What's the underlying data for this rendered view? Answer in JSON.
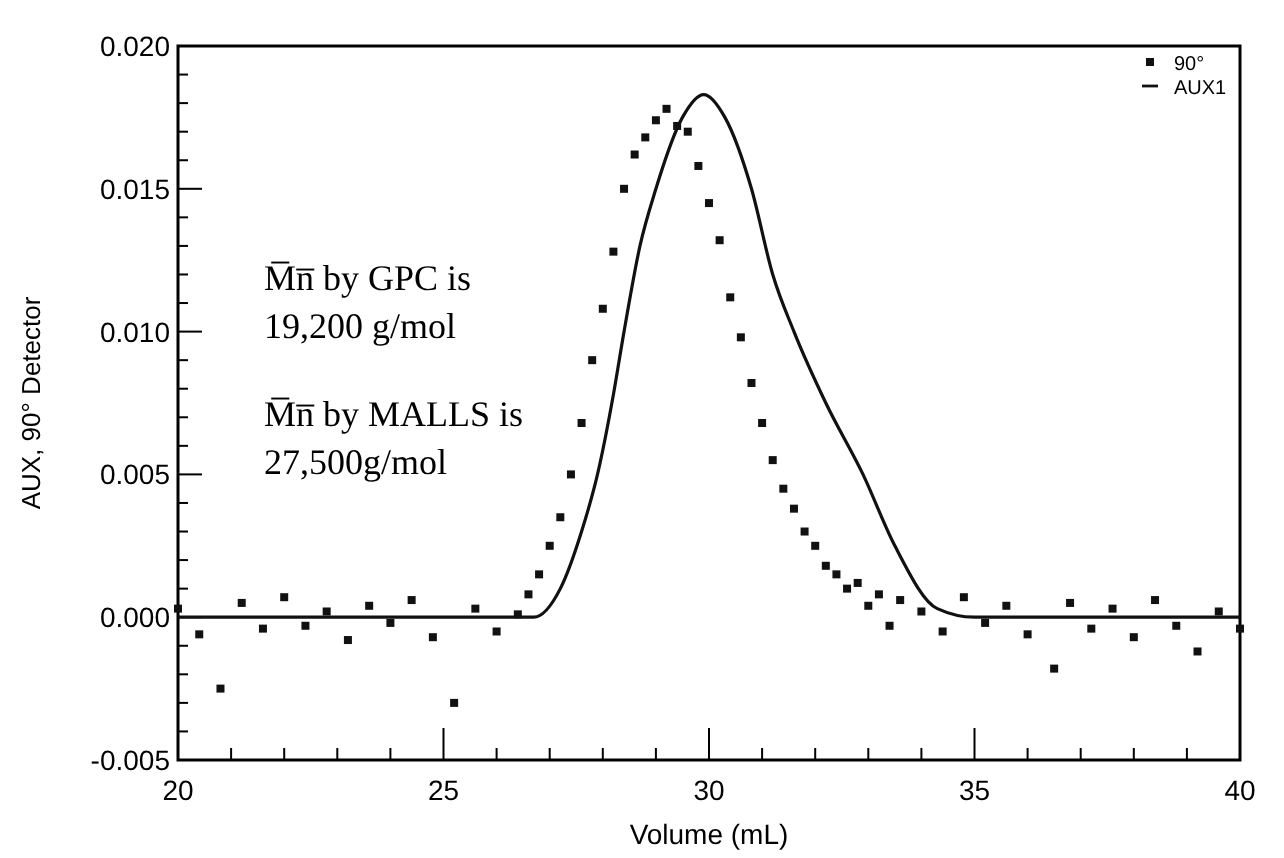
{
  "chart_data": {
    "type": "scatter",
    "xlabel": "Volume (mL)",
    "ylabel": "AUX, 90° Detector",
    "annotations": [
      "M̅n̅ by GPC is",
      "19,200 g/mol",
      "M̅n̅ by MALLS is",
      "27,500g/mol"
    ],
    "xlim": [
      20,
      40
    ],
    "ylim": [
      -0.005,
      0.02
    ],
    "xticks": [
      20,
      {
        "value": 21,
        "label": null
      },
      {
        "value": 22,
        "label": null
      },
      {
        "value": 23,
        "label": null
      },
      {
        "value": 24,
        "label": null
      },
      25,
      {
        "value": 26,
        "label": null
      },
      {
        "value": 27,
        "label": null
      },
      {
        "value": 28,
        "label": null
      },
      {
        "value": 29,
        "label": null
      },
      30,
      {
        "value": 31,
        "label": null
      },
      {
        "value": 32,
        "label": null
      },
      {
        "value": 33,
        "label": null
      },
      {
        "value": 34,
        "label": null
      },
      35,
      {
        "value": 36,
        "label": null
      },
      {
        "value": 37,
        "label": null
      },
      {
        "value": 38,
        "label": null
      },
      {
        "value": 39,
        "label": null
      },
      40
    ],
    "yticks": [
      {
        "value": -0.005,
        "label": "-0.005"
      },
      {
        "value": -0.004,
        "label": null
      },
      {
        "value": -0.003,
        "label": null
      },
      {
        "value": -0.002,
        "label": null
      },
      {
        "value": -0.001,
        "label": null
      },
      {
        "value": 0,
        "label": "0.000"
      },
      {
        "value": 0.001,
        "label": null
      },
      {
        "value": 0.002,
        "label": null
      },
      {
        "value": 0.003,
        "label": null
      },
      {
        "value": 0.004,
        "label": null
      },
      {
        "value": 0.005,
        "label": "0.005"
      },
      {
        "value": 0.006,
        "label": null
      },
      {
        "value": 0.007,
        "label": null
      },
      {
        "value": 0.008,
        "label": null
      },
      {
        "value": 0.009,
        "label": null
      },
      {
        "value": 0.01,
        "label": "0.010"
      },
      {
        "value": 0.011,
        "label": null
      },
      {
        "value": 0.012,
        "label": null
      },
      {
        "value": 0.013,
        "label": null
      },
      {
        "value": 0.014,
        "label": null
      },
      {
        "value": 0.015,
        "label": "0.015"
      },
      {
        "value": 0.016,
        "label": null
      },
      {
        "value": 0.017,
        "label": null
      },
      {
        "value": 0.018,
        "label": null
      },
      {
        "value": 0.019,
        "label": null
      },
      {
        "value": 0.02,
        "label": "0.020"
      }
    ],
    "grid": false,
    "legend": "top right",
    "series": [
      {
        "name": "90°",
        "marker": "square",
        "color": "#111111",
        "x": [
          20.0,
          20.4,
          20.8,
          21.2,
          21.6,
          22.0,
          22.4,
          22.8,
          23.2,
          23.6,
          24.0,
          24.4,
          24.8,
          25.2,
          25.6,
          26.0,
          26.4,
          26.6,
          26.8,
          27.0,
          27.2,
          27.4,
          27.6,
          27.8,
          28.0,
          28.2,
          28.4,
          28.6,
          28.8,
          29.0,
          29.2,
          29.4,
          29.6,
          29.8,
          30.0,
          30.2,
          30.4,
          30.6,
          30.8,
          31.0,
          31.2,
          31.4,
          31.6,
          31.8,
          32.0,
          32.2,
          32.4,
          32.6,
          32.8,
          33.0,
          33.2,
          33.4,
          33.6,
          34.0,
          34.4,
          34.8,
          35.2,
          35.6,
          36.0,
          36.5,
          36.8,
          37.2,
          37.6,
          38.0,
          38.4,
          38.8,
          39.2,
          39.6,
          40.0
        ],
        "values": [
          0.0003,
          -0.0006,
          -0.0025,
          0.0005,
          -0.0004,
          0.0007,
          -0.0003,
          0.0002,
          -0.0008,
          0.0004,
          -0.0002,
          0.0006,
          -0.0007,
          -0.003,
          0.0003,
          -0.0005,
          0.0001,
          0.0008,
          0.0015,
          0.0025,
          0.0035,
          0.005,
          0.0068,
          0.009,
          0.0108,
          0.0128,
          0.015,
          0.0162,
          0.0168,
          0.0174,
          0.0178,
          0.0172,
          0.017,
          0.0158,
          0.0145,
          0.0132,
          0.0112,
          0.0098,
          0.0082,
          0.0068,
          0.0055,
          0.0045,
          0.0038,
          0.003,
          0.0025,
          0.0018,
          0.0015,
          0.001,
          0.0012,
          0.0004,
          0.0008,
          -0.0003,
          0.0006,
          0.0002,
          -0.0005,
          0.0007,
          -0.0002,
          0.0004,
          -0.0006,
          -0.0018,
          0.0005,
          -0.0004,
          0.0003,
          -0.0007,
          0.0006,
          -0.0003,
          -0.0012,
          0.0002,
          -0.0004
        ]
      },
      {
        "name": "AUX1",
        "type": "line",
        "marker": "none",
        "line_style": "solid",
        "color": "#111111",
        "x": [
          20,
          26.7,
          27.2,
          27.6,
          27.9,
          28.2,
          28.4,
          28.7,
          29.0,
          29.5,
          29.9,
          30.3,
          30.8,
          31.2,
          31.6,
          32.2,
          32.9,
          33.5,
          34.3,
          35,
          40
        ],
        "values": [
          0,
          0,
          0.001,
          0.003,
          0.005,
          0.0078,
          0.01,
          0.013,
          0.015,
          0.0175,
          0.0183,
          0.0175,
          0.015,
          0.012,
          0.01,
          0.0075,
          0.005,
          0.0025,
          0.0003,
          0,
          0
        ]
      }
    ]
  }
}
